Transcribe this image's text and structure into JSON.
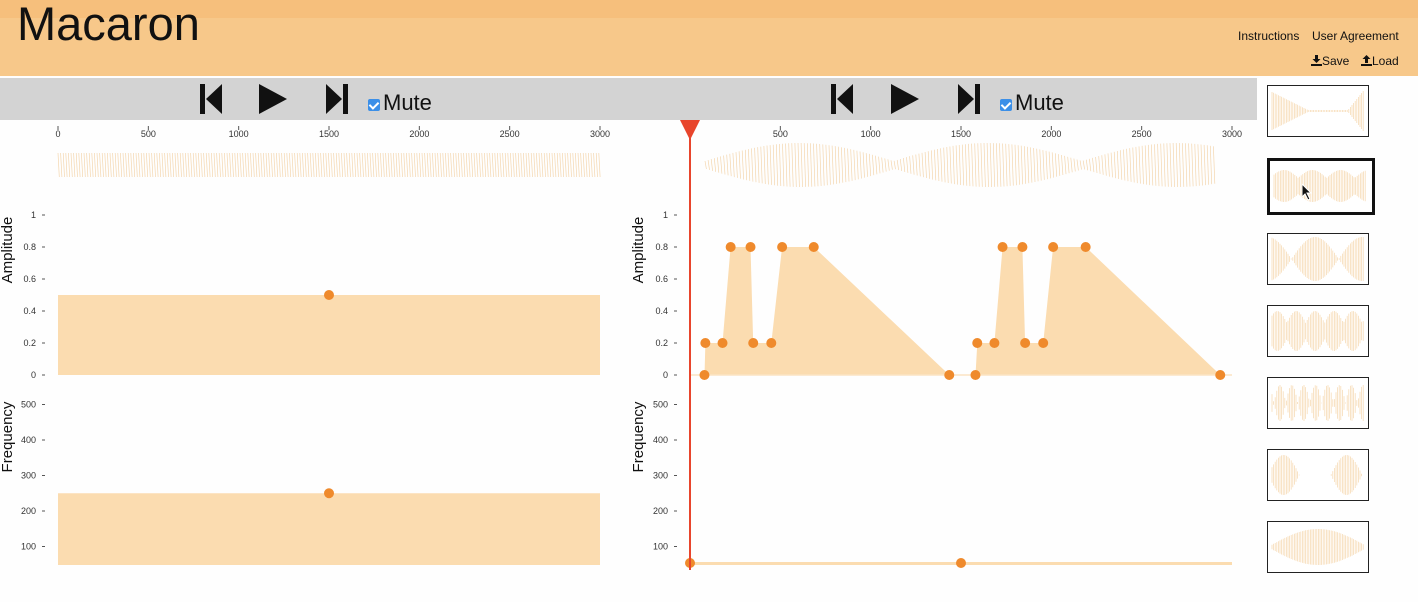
{
  "app": {
    "title": "Macaron"
  },
  "header": {
    "instructions": "Instructions",
    "agreement": "User Agreement",
    "save": "Save",
    "load": "Load"
  },
  "left_panel": {
    "mute_label": "Mute",
    "muted": true,
    "time_ticks": [
      "0",
      "500",
      "1000",
      "1500",
      "2000",
      "2500",
      "3000"
    ],
    "amplitude_label": "Amplitude",
    "amplitude_ticks": [
      "1",
      "0.8",
      "0.6",
      "0.4",
      "0.2",
      "0"
    ],
    "frequency_label": "Frequency",
    "frequency_ticks": [
      "500",
      "400",
      "300",
      "200",
      "100"
    ],
    "amplitude_keyframes": [
      {
        "t": 1500,
        "v": 0.5
      }
    ],
    "frequency_keyframes": [
      {
        "t": 1500,
        "v": 250
      }
    ]
  },
  "right_panel": {
    "mute_label": "Mute",
    "muted": true,
    "time_ticks": [
      "500",
      "1000",
      "1500",
      "2000",
      "2500",
      "3000"
    ],
    "amplitude_label": "Amplitude",
    "amplitude_ticks": [
      "1",
      "0.8",
      "0.6",
      "0.4",
      "0.2",
      "0"
    ],
    "frequency_label": "Frequency",
    "frequency_ticks": [
      "500",
      "400",
      "300",
      "200",
      "100"
    ],
    "playhead_ms": 0,
    "amplitude_keyframes": [
      {
        "t": 80,
        "v": 0
      },
      {
        "t": 85,
        "v": 0.2
      },
      {
        "t": 180,
        "v": 0.2
      },
      {
        "t": 225,
        "v": 0.8
      },
      {
        "t": 335,
        "v": 0.8
      },
      {
        "t": 350,
        "v": 0.2
      },
      {
        "t": 450,
        "v": 0.2
      },
      {
        "t": 510,
        "v": 0.8
      },
      {
        "t": 685,
        "v": 0.8
      },
      {
        "t": 1435,
        "v": 0
      },
      {
        "t": 1580,
        "v": 0
      },
      {
        "t": 1590,
        "v": 0.2
      },
      {
        "t": 1685,
        "v": 0.2
      },
      {
        "t": 1730,
        "v": 0.8
      },
      {
        "t": 1840,
        "v": 0.8
      },
      {
        "t": 1855,
        "v": 0.2
      },
      {
        "t": 1955,
        "v": 0.2
      },
      {
        "t": 2010,
        "v": 0.8
      },
      {
        "t": 2190,
        "v": 0.8
      },
      {
        "t": 2935,
        "v": 0
      }
    ],
    "frequency_keyframes": [
      {
        "t": 0,
        "v": 50
      },
      {
        "t": 1500,
        "v": 50
      }
    ]
  },
  "library": {
    "thumbnails": [
      "wave-1",
      "wave-2",
      "wave-3",
      "wave-4",
      "wave-5",
      "wave-6",
      "wave-7"
    ],
    "selected_index": 1
  },
  "colors": {
    "header": "#f7c88a",
    "fill": "#fbdcb0",
    "point": "#ef8a2c",
    "playhead": "#e8452c",
    "toolbar": "#d3d3d3"
  }
}
